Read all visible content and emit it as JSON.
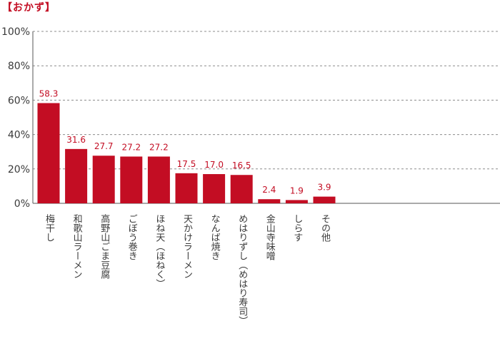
{
  "title": "【おかず】",
  "colors": {
    "bar": "#c30d23",
    "label": "#c30d23",
    "grid": "#8c8c8c",
    "axis": "#555555",
    "text": "#3a3a3a"
  },
  "chart_data": {
    "type": "bar",
    "categories": [
      "梅干し",
      "和歌山ラーメン",
      "高野山ごま豆腐",
      "ごぼう巻き",
      "ほね天（ほねく）",
      "天かけラーメン",
      "なんば焼き",
      "めはりずし（めはり寿司）",
      "金山寺味噌",
      "しらす",
      "その他"
    ],
    "values": [
      58.3,
      31.6,
      27.7,
      27.2,
      27.2,
      17.5,
      17.0,
      16.5,
      2.4,
      1.9,
      3.9
    ],
    "value_labels": [
      "58.3",
      "31.6",
      "27.7",
      "27.2",
      "27.2",
      "17.5",
      "17.0",
      "16.5",
      "2.4",
      "1.9",
      "3.9"
    ],
    "yticks": [
      "0%",
      "20%",
      "40%",
      "60%",
      "80%",
      "100%"
    ],
    "ylim": [
      0,
      100
    ],
    "grid": true
  }
}
